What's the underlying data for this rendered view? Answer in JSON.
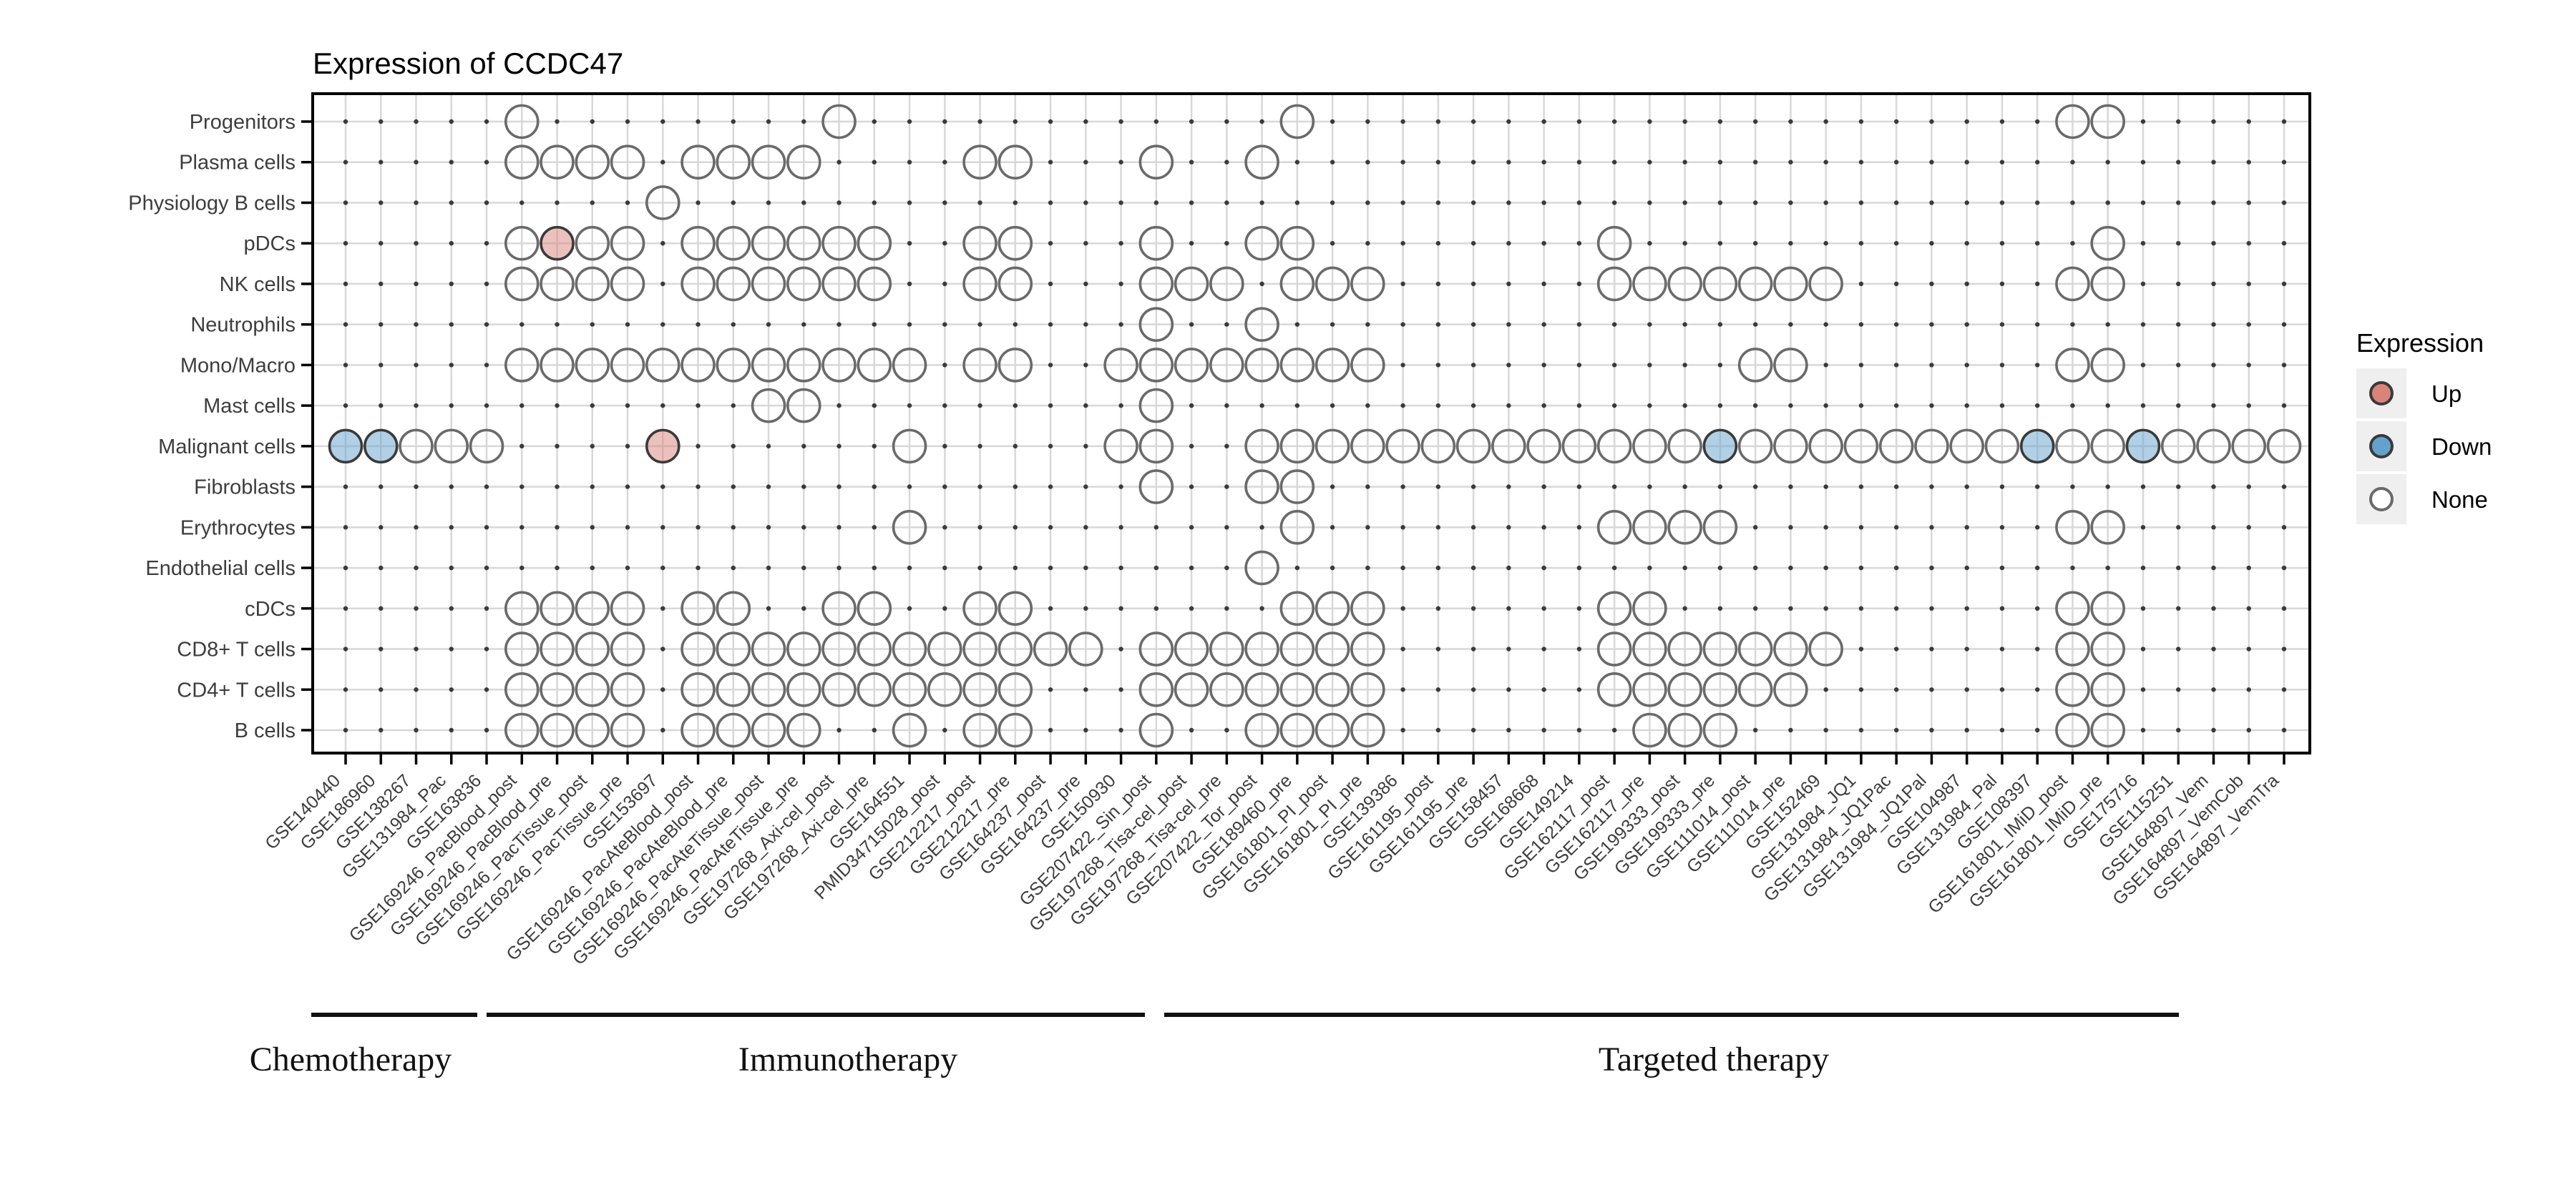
{
  "chart_data": {
    "type": "scatter",
    "subtype": "dot-matrix-expression-grid",
    "title": "Expression of CCDC47",
    "legend": {
      "title": "Expression",
      "items": [
        {
          "label": "Up",
          "value": "up",
          "color": "#d9837b"
        },
        {
          "label": "Down",
          "value": "down",
          "color": "#64a2cb"
        },
        {
          "label": "None",
          "value": "none",
          "color": "#ffffff"
        }
      ]
    },
    "colors": {
      "up_fill": "#d9837b",
      "down_fill": "#64a2cb",
      "none_stroke": "#6a6a6a",
      "marker_stroke": "#3a3a3a",
      "grid_line": "#d8d8d8",
      "grid_dot": "#3a3a3a",
      "axis_text": "#3d3d3d",
      "panel_border": "#000000",
      "legend_key_bg": "#efefef"
    },
    "rows": [
      "Progenitors",
      "Plasma cells",
      "Physiology B cells",
      "pDCs",
      "NK cells",
      "Neutrophils",
      "Mono/Macro",
      "Mast cells",
      "Malignant cells",
      "Fibroblasts",
      "Erythrocytes",
      "Endothelial cells",
      "cDCs",
      "CD8+ T cells",
      "CD4+ T cells",
      "B cells"
    ],
    "columns": [
      "GSE140440",
      "GSE186960",
      "GSE138267",
      "GSE131984_Pac",
      "GSE163836",
      "GSE169246_PacBlood_post",
      "GSE169246_PacBlood_pre",
      "GSE169246_PacTissue_post",
      "GSE169246_PacTissue_pre",
      "GSE153697",
      "GSE169246_PacAteBlood_post",
      "GSE169246_PacAteBlood_pre",
      "GSE169246_PacAteTissue_post",
      "GSE169246_PacAteTissue_pre",
      "GSE197268_Axi-cel_post",
      "GSE197268_Axi-cel_pre",
      "GSE164551",
      "PMID34715028_post",
      "GSE212217_post",
      "GSE212217_pre",
      "GSE164237_post",
      "GSE164237_pre",
      "GSE150930",
      "GSE207422_Sin_post",
      "GSE197268_Tisa-cel_post",
      "GSE197268_Tisa-cel_pre",
      "GSE207422_Tor_post",
      "GSE189460_pre",
      "GSE161801_PI_post",
      "GSE161801_PI_pre",
      "GSE139386",
      "GSE161195_post",
      "GSE161195_pre",
      "GSE158457",
      "GSE168668",
      "GSE149214",
      "GSE162117_post",
      "GSE162117_pre",
      "GSE199333_post",
      "GSE199333_pre",
      "GSE111014_post",
      "GSE111014_pre",
      "GSE152469",
      "GSE131984_JQ1",
      "GSE131984_JQ1Pac",
      "GSE131984_JQ1Pal",
      "GSE104987",
      "GSE131984_Pal",
      "GSE108397",
      "GSE161801_IMiD_post",
      "GSE161801_IMiD_pre",
      "GSE175716",
      "GSE115251",
      "GSE164897_Vem",
      "GSE164897_VemCob",
      "GSE164897_VemTra"
    ],
    "groups": [
      {
        "label": "Chemotherapy",
        "start": 1,
        "end": 4
      },
      {
        "label": "Immunotherapy",
        "start": 5,
        "end": 23
      },
      {
        "label": "Targeted therapy",
        "start": 24,
        "end": 56
      }
    ],
    "points": [
      {
        "row": "Progenitors",
        "none": [
          6,
          15,
          28,
          50,
          51
        ],
        "up": [],
        "down": []
      },
      {
        "row": "Plasma cells",
        "none": [
          6,
          7,
          8,
          9,
          11,
          12,
          13,
          14,
          19,
          20,
          24,
          27
        ],
        "up": [],
        "down": []
      },
      {
        "row": "Physiology B cells",
        "none": [
          10
        ],
        "up": [],
        "down": []
      },
      {
        "row": "pDCs",
        "none": [
          6,
          8,
          9,
          11,
          12,
          13,
          14,
          15,
          16,
          19,
          20,
          24,
          27,
          28,
          37,
          51
        ],
        "up": [
          7
        ],
        "down": []
      },
      {
        "row": "NK cells",
        "none": [
          6,
          7,
          8,
          9,
          11,
          12,
          13,
          14,
          15,
          16,
          19,
          20,
          24,
          25,
          26,
          28,
          29,
          30,
          37,
          38,
          39,
          40,
          41,
          42,
          43,
          50,
          51
        ],
        "up": [],
        "down": []
      },
      {
        "row": "Neutrophils",
        "none": [
          24,
          27
        ],
        "up": [],
        "down": []
      },
      {
        "row": "Mono/Macro",
        "none": [
          6,
          7,
          8,
          9,
          10,
          11,
          12,
          13,
          14,
          15,
          16,
          17,
          19,
          20,
          23,
          24,
          25,
          26,
          27,
          28,
          29,
          30,
          41,
          42,
          50,
          51
        ],
        "up": [],
        "down": []
      },
      {
        "row": "Mast cells",
        "none": [
          13,
          14,
          24
        ],
        "up": [],
        "down": []
      },
      {
        "row": "Malignant cells",
        "none": [
          3,
          4,
          5,
          17,
          23,
          24,
          27,
          28,
          29,
          30,
          31,
          32,
          33,
          34,
          35,
          36,
          37,
          38,
          39,
          41,
          42,
          43,
          44,
          45,
          46,
          47,
          48,
          50,
          51,
          53,
          54,
          55,
          56
        ],
        "up": [
          10
        ],
        "down": [
          1,
          2,
          40,
          49,
          52
        ]
      },
      {
        "row": "Fibroblasts",
        "none": [
          24,
          27,
          28
        ],
        "up": [],
        "down": []
      },
      {
        "row": "Erythrocytes",
        "none": [
          17,
          28,
          37,
          38,
          39,
          40,
          50,
          51
        ],
        "up": [],
        "down": []
      },
      {
        "row": "Endothelial cells",
        "none": [
          27
        ],
        "up": [],
        "down": []
      },
      {
        "row": "cDCs",
        "none": [
          6,
          7,
          8,
          9,
          11,
          12,
          15,
          16,
          19,
          20,
          28,
          29,
          30,
          37,
          38,
          50,
          51
        ],
        "up": [],
        "down": []
      },
      {
        "row": "CD8+ T cells",
        "none": [
          6,
          7,
          8,
          9,
          11,
          12,
          13,
          14,
          15,
          16,
          17,
          18,
          19,
          20,
          21,
          22,
          24,
          25,
          26,
          27,
          28,
          29,
          30,
          37,
          38,
          39,
          40,
          41,
          42,
          43,
          50,
          51
        ],
        "up": [],
        "down": []
      },
      {
        "row": "CD4+ T cells",
        "none": [
          6,
          7,
          8,
          9,
          11,
          12,
          13,
          14,
          15,
          16,
          17,
          18,
          19,
          20,
          24,
          25,
          26,
          27,
          28,
          29,
          30,
          37,
          38,
          39,
          40,
          41,
          42,
          50,
          51
        ],
        "up": [],
        "down": []
      },
      {
        "row": "B cells",
        "none": [
          6,
          7,
          8,
          9,
          11,
          12,
          13,
          14,
          17,
          19,
          20,
          24,
          27,
          28,
          29,
          30,
          38,
          39,
          40,
          50,
          51
        ],
        "up": [],
        "down": []
      }
    ],
    "layout_hints": {
      "grid": "on",
      "legend_position": "right",
      "x_tick_angle": 45
    }
  }
}
